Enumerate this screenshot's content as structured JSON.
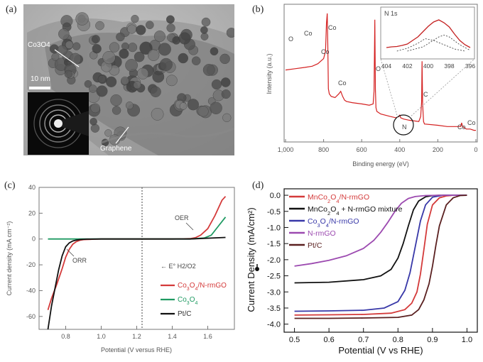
{
  "panel_a": {
    "label": "(a)",
    "scale_bar": "10 nm",
    "annot_co3o4": "Co3O4",
    "annot_graphene": "Graphene"
  },
  "panel_b": {
    "label": "(b)",
    "chart_xlabel": "Binding energy (eV)",
    "chart_ylabel": "Intensity (a.u.)",
    "inset_title": "N 1s",
    "peak_labels": [
      "O",
      "Co",
      "Co",
      "Co",
      "Co",
      "O",
      "N",
      "C",
      "Co",
      "Co"
    ]
  },
  "panel_c": {
    "label": "(c)",
    "orr": "ORR",
    "oer": "OER",
    "e0": "← E° H2/O2"
  },
  "panel_d": {
    "label": "(d)"
  },
  "chart_data": [
    {
      "id": "b",
      "type": "line",
      "xlabel": "Binding energy (eV)",
      "ylabel": "Intensity (a.u.)",
      "xlim": [
        1000,
        0
      ],
      "xticks": [
        1000,
        800,
        600,
        400,
        200,
        0
      ],
      "xtick_labels": [
        "1,000",
        "800",
        "600",
        "400",
        "200",
        "0"
      ],
      "series": [
        {
          "color": "#d42020",
          "x": [
            1000,
            950,
            900,
            860,
            830,
            800,
            790,
            785,
            781,
            778,
            775,
            770,
            760,
            740,
            720,
            710,
            700,
            690,
            680,
            650,
            600,
            560,
            540,
            535,
            531,
            528,
            525,
            520,
            500,
            450,
            420,
            405,
            400,
            395,
            380,
            350,
            300,
            290,
            285,
            283,
            280,
            275,
            270,
            200,
            150,
            100,
            80,
            75,
            70,
            60,
            50,
            30,
            10,
            0
          ],
          "y": [
            0.55,
            0.56,
            0.57,
            0.58,
            0.6,
            0.64,
            0.7,
            0.92,
            1.0,
            0.75,
            0.4,
            0.36,
            0.34,
            0.33,
            0.36,
            0.38,
            0.34,
            0.31,
            0.3,
            0.29,
            0.28,
            0.27,
            0.28,
            0.38,
            0.95,
            0.4,
            0.25,
            0.22,
            0.2,
            0.18,
            0.17,
            0.18,
            0.19,
            0.17,
            0.16,
            0.15,
            0.14,
            0.18,
            0.3,
            0.62,
            0.28,
            0.14,
            0.12,
            0.11,
            0.1,
            0.1,
            0.1,
            0.13,
            0.1,
            0.09,
            0.08,
            0.08,
            0.07,
            0.07
          ]
        }
      ],
      "inset": {
        "title": "N 1s",
        "xlim": [
          404,
          396
        ],
        "xticks": [
          404,
          402,
          400,
          398,
          396
        ],
        "measured": [
          [
            404,
            0.1
          ],
          [
            403.5,
            0.12
          ],
          [
            403,
            0.13
          ],
          [
            402.5,
            0.16
          ],
          [
            402,
            0.2
          ],
          [
            401.5,
            0.3
          ],
          [
            401,
            0.4
          ],
          [
            400.5,
            0.55
          ],
          [
            400,
            0.7
          ],
          [
            399.5,
            0.82
          ],
          [
            399,
            0.88
          ],
          [
            398.5,
            0.8
          ],
          [
            398,
            0.68
          ],
          [
            397.5,
            0.48
          ],
          [
            397,
            0.3
          ],
          [
            396.5,
            0.18
          ],
          [
            396,
            0.1
          ]
        ],
        "fit1": [
          [
            403,
            0.0
          ],
          [
            402,
            0.08
          ],
          [
            401,
            0.22
          ],
          [
            400.3,
            0.35
          ],
          [
            399.5,
            0.3
          ],
          [
            398.5,
            0.18
          ],
          [
            397.5,
            0.06
          ],
          [
            396.5,
            0.0
          ]
        ],
        "fit2": [
          [
            402,
            0.0
          ],
          [
            400.5,
            0.12
          ],
          [
            399,
            0.4
          ],
          [
            398.5,
            0.45
          ],
          [
            398,
            0.4
          ],
          [
            397,
            0.18
          ],
          [
            396,
            0.02
          ]
        ]
      }
    },
    {
      "id": "c",
      "type": "line",
      "xlabel": "Potential (V versus RHE)",
      "ylabel": "Current density (mA cm⁻²)",
      "xlim": [
        0.65,
        1.75
      ],
      "ylim": [
        -70,
        40
      ],
      "xticks": [
        0.8,
        1.0,
        1.2,
        1.4,
        1.6
      ],
      "yticks": [
        40,
        20,
        0,
        -20,
        -40,
        -60
      ],
      "vline": 1.23,
      "legend_position": "bottom-right",
      "series": [
        {
          "name": "Co3O4/N-rmGO",
          "color": "#d43a3a",
          "x": [
            0.7,
            0.72,
            0.75,
            0.78,
            0.8,
            0.82,
            0.84,
            0.86,
            0.88,
            0.9,
            0.95,
            1.0,
            1.4,
            1.5,
            1.53,
            1.56,
            1.6,
            1.64,
            1.68,
            1.7
          ],
          "y": [
            -55,
            -46,
            -35,
            -23,
            -14,
            -8,
            -4,
            -2,
            -1,
            -0.5,
            -0.2,
            0,
            0,
            0.3,
            1,
            3,
            8,
            18,
            30,
            33
          ]
        },
        {
          "name": "Co3O4",
          "color": "#1f9a62",
          "x": [
            0.7,
            0.9,
            1.0,
            1.5,
            1.58,
            1.62,
            1.66,
            1.7
          ],
          "y": [
            0,
            0,
            0,
            0,
            0.8,
            3,
            10,
            17
          ]
        },
        {
          "name": "Pt/C",
          "color": "#111111",
          "x": [
            0.7,
            0.72,
            0.74,
            0.76,
            0.78,
            0.8,
            0.82,
            0.84,
            0.86,
            0.88,
            0.92,
            1.0,
            1.5,
            1.7
          ],
          "y": [
            -70,
            -52,
            -38,
            -24,
            -13,
            -6,
            -3,
            -1.5,
            -0.8,
            -0.4,
            -0.1,
            0,
            0,
            1.2
          ]
        }
      ]
    },
    {
      "id": "d",
      "type": "line",
      "xlabel": "Potential (V vs RHE)",
      "ylabel": "Current Density (mA/cm²)",
      "xlim": [
        0.47,
        1.03
      ],
      "ylim": [
        -4.25,
        0.2
      ],
      "xticks": [
        0.5,
        0.6,
        0.7,
        0.8,
        0.9,
        1.0
      ],
      "yticks": [
        0.0,
        -0.5,
        -1.0,
        -1.5,
        -2.0,
        -2.5,
        -3.0,
        -3.5,
        -4.0
      ],
      "ytick_labels": [
        "0.0",
        "-0.5",
        "-1.0",
        "-1.5",
        "-2.0",
        "-2.5",
        "-3.0",
        "-3.5",
        "-4.0"
      ],
      "legend_position": "top-left",
      "series": [
        {
          "name": "MnCo2O4/N-rmGO",
          "color": "#d43a3a",
          "x": [
            0.5,
            0.6,
            0.7,
            0.78,
            0.82,
            0.84,
            0.855,
            0.865,
            0.875,
            0.885,
            0.9,
            0.92,
            0.94,
            0.96,
            1.0
          ],
          "y": [
            -3.72,
            -3.71,
            -3.7,
            -3.66,
            -3.55,
            -3.35,
            -3.0,
            -2.45,
            -1.7,
            -0.9,
            -0.3,
            -0.08,
            -0.02,
            0,
            0
          ]
        },
        {
          "name": "MnCo2O4 + N-rmGO mixture",
          "color": "#111111",
          "x": [
            0.5,
            0.6,
            0.7,
            0.75,
            0.78,
            0.8,
            0.815,
            0.83,
            0.845,
            0.86,
            0.88,
            0.9,
            0.92,
            1.0
          ],
          "y": [
            -2.72,
            -2.7,
            -2.62,
            -2.5,
            -2.3,
            -1.95,
            -1.5,
            -0.95,
            -0.45,
            -0.18,
            -0.05,
            -0.01,
            0,
            0
          ]
        },
        {
          "name": "Co3O4/N-rmGO",
          "color": "#3838a8",
          "x": [
            0.5,
            0.6,
            0.7,
            0.76,
            0.8,
            0.82,
            0.835,
            0.85,
            0.865,
            0.88,
            0.9,
            0.93,
            1.0
          ],
          "y": [
            -3.6,
            -3.59,
            -3.57,
            -3.5,
            -3.3,
            -2.95,
            -2.4,
            -1.6,
            -0.8,
            -0.3,
            -0.06,
            0,
            0
          ]
        },
        {
          "name": "N-rmGO",
          "color": "#9c4ab0",
          "x": [
            0.5,
            0.55,
            0.6,
            0.65,
            0.7,
            0.73,
            0.75,
            0.77,
            0.79,
            0.81,
            0.83,
            0.85,
            0.88,
            0.92,
            1.0
          ],
          "y": [
            -2.2,
            -2.12,
            -2.02,
            -1.88,
            -1.65,
            -1.4,
            -1.15,
            -0.85,
            -0.52,
            -0.25,
            -0.1,
            -0.04,
            -0.01,
            0,
            0
          ]
        },
        {
          "name": "Pt/C",
          "color": "#5a2020",
          "x": [
            0.5,
            0.6,
            0.7,
            0.8,
            0.84,
            0.86,
            0.875,
            0.89,
            0.9,
            0.91,
            0.92,
            0.94,
            0.96,
            0.98,
            1.0
          ],
          "y": [
            -3.82,
            -3.82,
            -3.81,
            -3.79,
            -3.72,
            -3.55,
            -3.25,
            -2.75,
            -2.2,
            -1.55,
            -0.95,
            -0.3,
            -0.08,
            -0.01,
            0
          ]
        }
      ]
    }
  ]
}
